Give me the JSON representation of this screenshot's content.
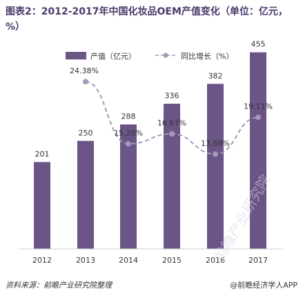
{
  "title": "图表2：2012-2017年中国化妆品OEM产值变化（单位：亿元，%）",
  "footer": {
    "source": "资料来源：前瞻产业研究院整理",
    "brand": "@前瞻经济学人APP"
  },
  "watermark": "前瞻产业研究院",
  "colors": {
    "bar": "#6b5587",
    "line": "#a398b8",
    "grid_axis": "#cccccc"
  },
  "chart_data": {
    "type": "bar",
    "title": "图表2：2012-2017年中国化妆品OEM产值变化（单位：亿元，%）",
    "categories": [
      "2012",
      "2013",
      "2014",
      "2015",
      "2016",
      "2017"
    ],
    "series": [
      {
        "name": "产值（亿元）",
        "type": "bar",
        "values": [
          201,
          250,
          288,
          336,
          382,
          455
        ]
      },
      {
        "name": "同比增长（%）",
        "type": "line",
        "values": [
          null,
          24.38,
          15.2,
          16.67,
          13.69,
          19.11
        ],
        "labels": [
          "",
          "24.38%",
          "15.20%",
          "16.67%",
          "13.69%",
          "19.11%"
        ]
      }
    ],
    "legend": "top"
  }
}
